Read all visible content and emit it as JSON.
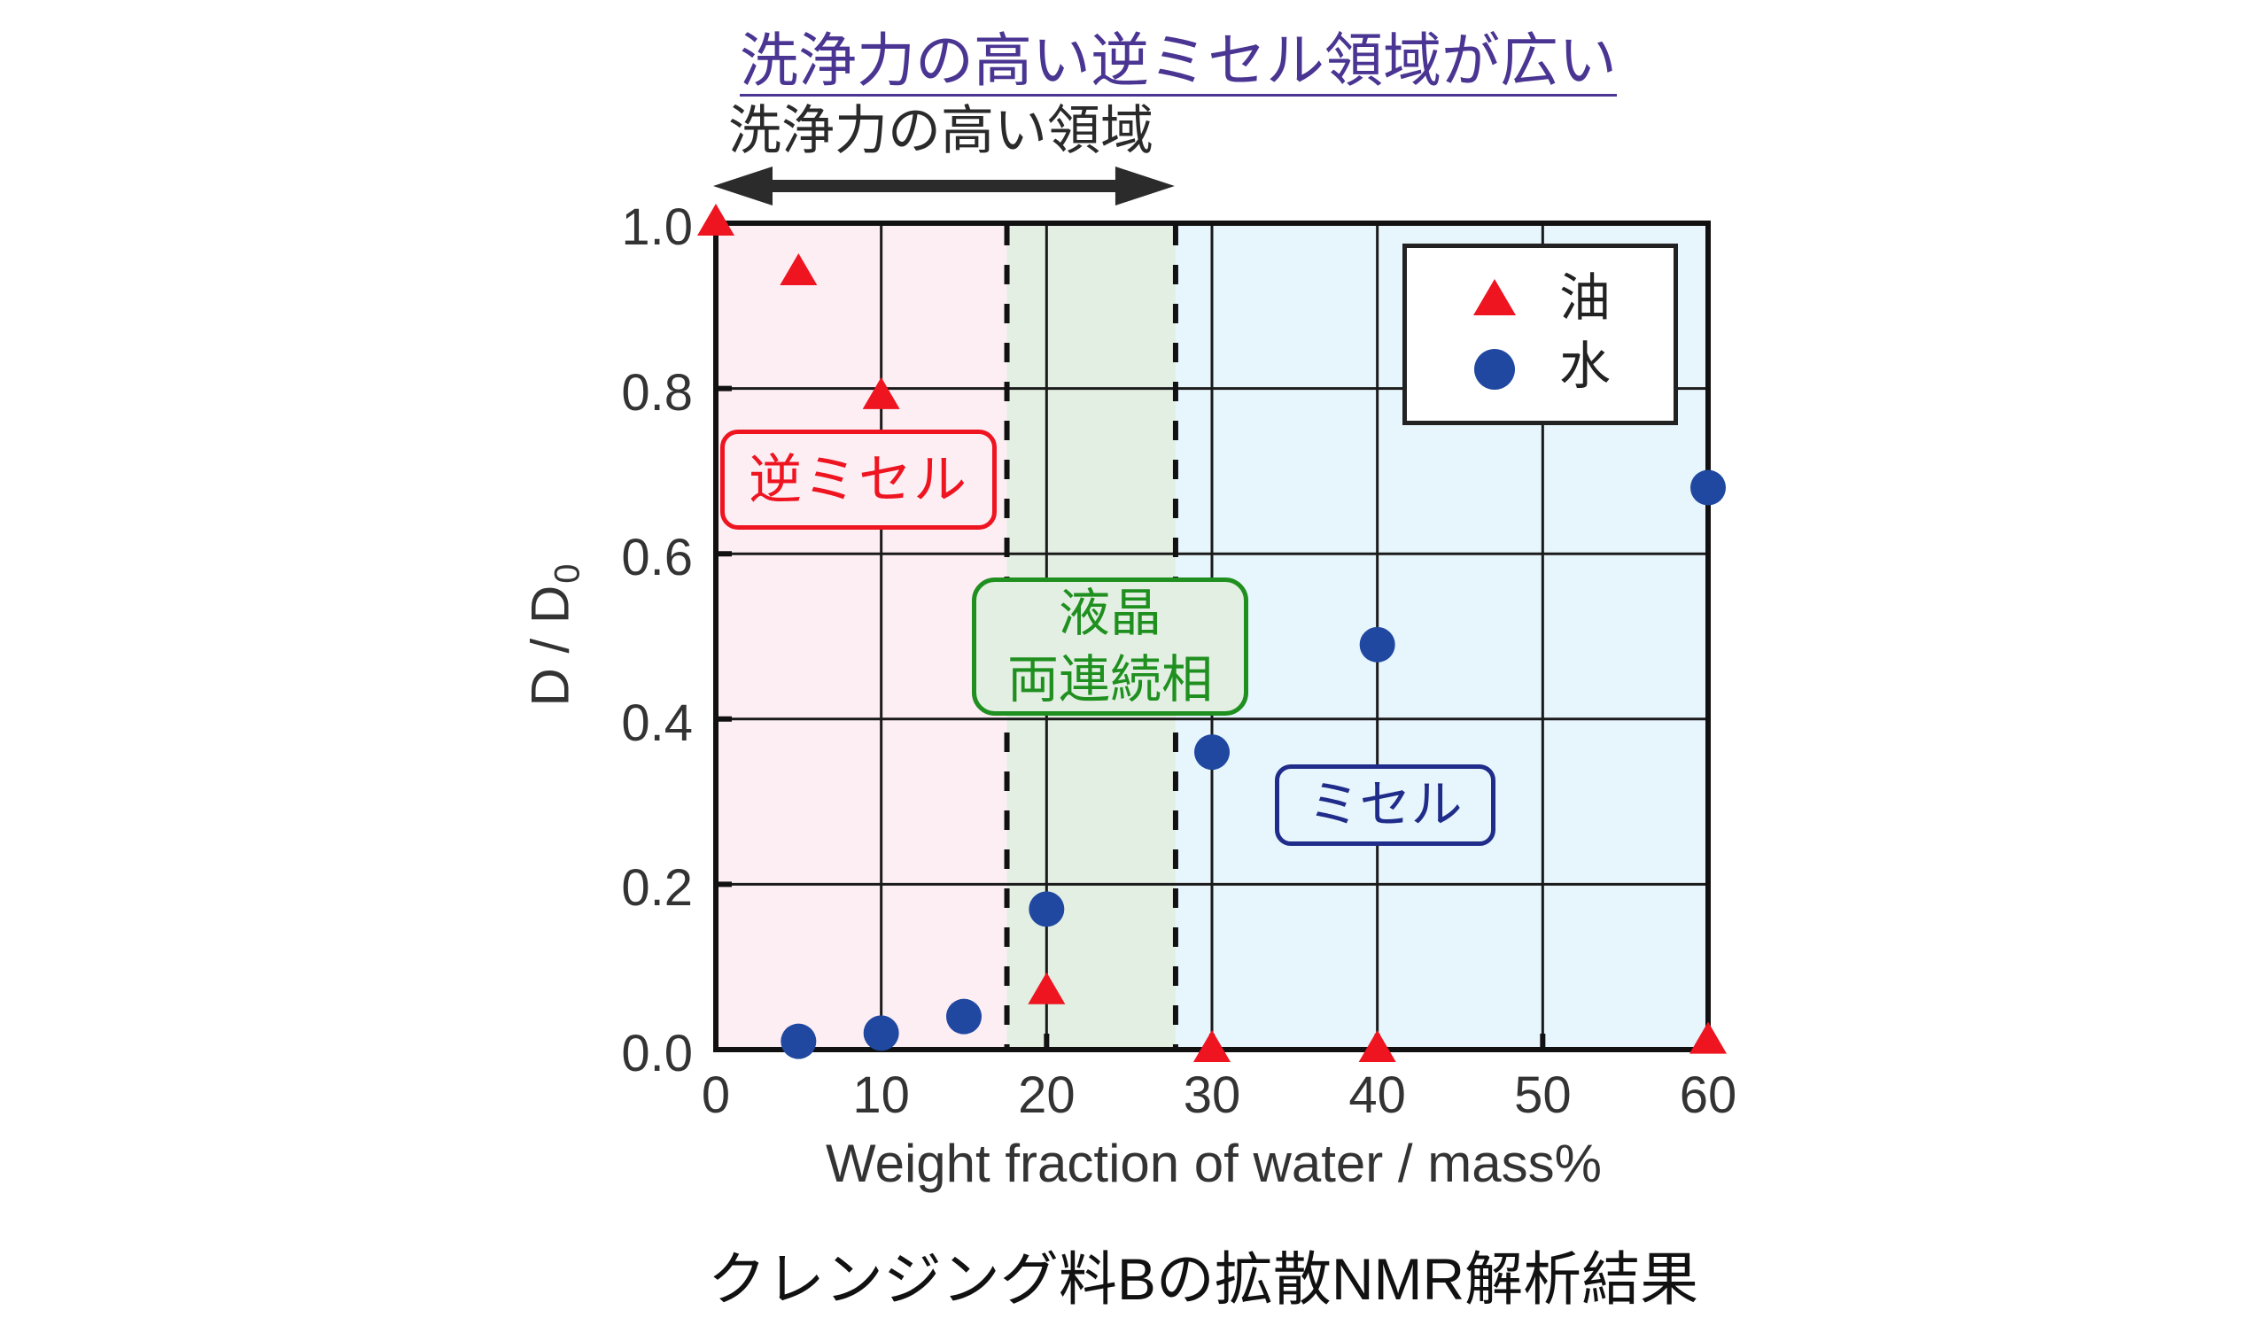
{
  "colors": {
    "title": "#4a3592",
    "text": "#333333",
    "arrow": "#2b2b2b",
    "axis": "#111111",
    "grid": "#1a1a1a"
  },
  "chart_data": {
    "type": "scatter",
    "title": "洗浄力の高い逆ミセル領域が広い",
    "caption": "クレンジング料Bの拡散NMR解析結果",
    "xlabel": "Weight fraction of water / mass%",
    "ylabel": "D / D0",
    "ylabel_parts": {
      "main": "D / D",
      "subscript": "0"
    },
    "xlim": [
      0,
      60
    ],
    "ylim": [
      0,
      1.0
    ],
    "xticks": [
      0,
      10,
      20,
      30,
      40,
      50,
      60
    ],
    "xtick_labels": [
      "0",
      "10",
      "20",
      "30",
      "40",
      "50",
      "60"
    ],
    "yticks": [
      0,
      0.2,
      0.4,
      0.6,
      0.8,
      1.0
    ],
    "ytick_labels": [
      "0.0",
      "0.2",
      "0.4",
      "0.6",
      "0.8",
      "1.0"
    ],
    "grid": true,
    "legend": {
      "position": "upper right",
      "entries": [
        "油",
        "水"
      ]
    },
    "series": [
      {
        "id": "oil",
        "name": "油",
        "marker": "triangle",
        "color": "#ee1420",
        "x": [
          0,
          5,
          10,
          20,
          30,
          40,
          60
        ],
        "y": [
          1.0,
          0.94,
          0.79,
          0.07,
          0.0,
          0.0,
          0.01
        ]
      },
      {
        "id": "water",
        "name": "水",
        "marker": "circle",
        "color": "#2048a0",
        "x": [
          5,
          10,
          15,
          20,
          30,
          40,
          60
        ],
        "y": [
          0.01,
          0.02,
          0.04,
          0.17,
          0.36,
          0.49,
          0.68
        ]
      }
    ],
    "regions": [
      {
        "id": "reverse-micelle",
        "label": "逆ミセル",
        "x_range": [
          0,
          17.6
        ],
        "fill": "#fdeef4",
        "label_color": "#ee1420"
      },
      {
        "id": "liquid-crystal",
        "label": "液晶 両連続相",
        "label_lines": [
          "液晶",
          "両連続相"
        ],
        "x_range": [
          17.6,
          27.8
        ],
        "fill": "#e2efe2",
        "label_color": "#1f8f1f"
      },
      {
        "id": "micelle",
        "label": "ミセル",
        "x_range": [
          27.8,
          60
        ],
        "fill": "#e7f5fd",
        "label_color": "#1f2c8a"
      }
    ],
    "boundaries": [
      17.6,
      27.8
    ],
    "annotations": [
      {
        "type": "double-arrow",
        "text": "洗浄力の高い領域",
        "x_range": [
          0,
          27.8
        ]
      }
    ]
  }
}
